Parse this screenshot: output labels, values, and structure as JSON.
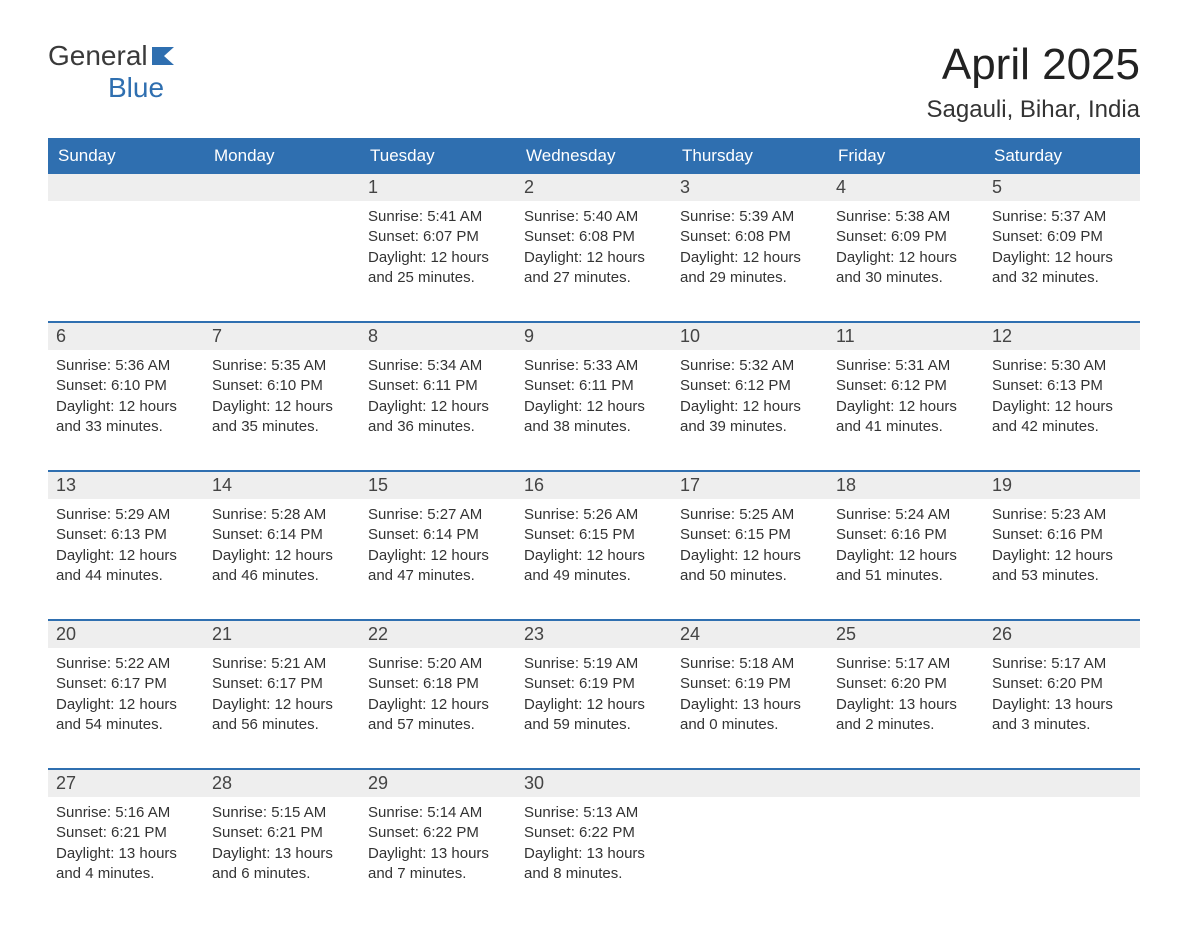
{
  "logo": {
    "text1": "General",
    "text2": "Blue"
  },
  "title": "April 2025",
  "location": "Sagauli, Bihar, India",
  "dow": [
    "Sunday",
    "Monday",
    "Tuesday",
    "Wednesday",
    "Thursday",
    "Friday",
    "Saturday"
  ],
  "colors": {
    "header_bg": "#2f6fb0",
    "header_text": "#ffffff",
    "daynum_bg": "#eeeeee",
    "text": "#333333",
    "rule": "#2f6fb0",
    "page_bg": "#ffffff",
    "logo_gray": "#3a3a3a",
    "logo_blue": "#2f6fb0"
  },
  "fonts": {
    "title_size_pt": 33,
    "location_size_pt": 18,
    "dow_size_pt": 13,
    "daynum_size_pt": 14,
    "body_size_pt": 11
  },
  "weeks": [
    [
      {
        "n": "",
        "lines": []
      },
      {
        "n": "",
        "lines": []
      },
      {
        "n": "1",
        "lines": [
          "Sunrise: 5:41 AM",
          "Sunset: 6:07 PM",
          "Daylight: 12 hours",
          "and 25 minutes."
        ]
      },
      {
        "n": "2",
        "lines": [
          "Sunrise: 5:40 AM",
          "Sunset: 6:08 PM",
          "Daylight: 12 hours",
          "and 27 minutes."
        ]
      },
      {
        "n": "3",
        "lines": [
          "Sunrise: 5:39 AM",
          "Sunset: 6:08 PM",
          "Daylight: 12 hours",
          "and 29 minutes."
        ]
      },
      {
        "n": "4",
        "lines": [
          "Sunrise: 5:38 AM",
          "Sunset: 6:09 PM",
          "Daylight: 12 hours",
          "and 30 minutes."
        ]
      },
      {
        "n": "5",
        "lines": [
          "Sunrise: 5:37 AM",
          "Sunset: 6:09 PM",
          "Daylight: 12 hours",
          "and 32 minutes."
        ]
      }
    ],
    [
      {
        "n": "6",
        "lines": [
          "Sunrise: 5:36 AM",
          "Sunset: 6:10 PM",
          "Daylight: 12 hours",
          "and 33 minutes."
        ]
      },
      {
        "n": "7",
        "lines": [
          "Sunrise: 5:35 AM",
          "Sunset: 6:10 PM",
          "Daylight: 12 hours",
          "and 35 minutes."
        ]
      },
      {
        "n": "8",
        "lines": [
          "Sunrise: 5:34 AM",
          "Sunset: 6:11 PM",
          "Daylight: 12 hours",
          "and 36 minutes."
        ]
      },
      {
        "n": "9",
        "lines": [
          "Sunrise: 5:33 AM",
          "Sunset: 6:11 PM",
          "Daylight: 12 hours",
          "and 38 minutes."
        ]
      },
      {
        "n": "10",
        "lines": [
          "Sunrise: 5:32 AM",
          "Sunset: 6:12 PM",
          "Daylight: 12 hours",
          "and 39 minutes."
        ]
      },
      {
        "n": "11",
        "lines": [
          "Sunrise: 5:31 AM",
          "Sunset: 6:12 PM",
          "Daylight: 12 hours",
          "and 41 minutes."
        ]
      },
      {
        "n": "12",
        "lines": [
          "Sunrise: 5:30 AM",
          "Sunset: 6:13 PM",
          "Daylight: 12 hours",
          "and 42 minutes."
        ]
      }
    ],
    [
      {
        "n": "13",
        "lines": [
          "Sunrise: 5:29 AM",
          "Sunset: 6:13 PM",
          "Daylight: 12 hours",
          "and 44 minutes."
        ]
      },
      {
        "n": "14",
        "lines": [
          "Sunrise: 5:28 AM",
          "Sunset: 6:14 PM",
          "Daylight: 12 hours",
          "and 46 minutes."
        ]
      },
      {
        "n": "15",
        "lines": [
          "Sunrise: 5:27 AM",
          "Sunset: 6:14 PM",
          "Daylight: 12 hours",
          "and 47 minutes."
        ]
      },
      {
        "n": "16",
        "lines": [
          "Sunrise: 5:26 AM",
          "Sunset: 6:15 PM",
          "Daylight: 12 hours",
          "and 49 minutes."
        ]
      },
      {
        "n": "17",
        "lines": [
          "Sunrise: 5:25 AM",
          "Sunset: 6:15 PM",
          "Daylight: 12 hours",
          "and 50 minutes."
        ]
      },
      {
        "n": "18",
        "lines": [
          "Sunrise: 5:24 AM",
          "Sunset: 6:16 PM",
          "Daylight: 12 hours",
          "and 51 minutes."
        ]
      },
      {
        "n": "19",
        "lines": [
          "Sunrise: 5:23 AM",
          "Sunset: 6:16 PM",
          "Daylight: 12 hours",
          "and 53 minutes."
        ]
      }
    ],
    [
      {
        "n": "20",
        "lines": [
          "Sunrise: 5:22 AM",
          "Sunset: 6:17 PM",
          "Daylight: 12 hours",
          "and 54 minutes."
        ]
      },
      {
        "n": "21",
        "lines": [
          "Sunrise: 5:21 AM",
          "Sunset: 6:17 PM",
          "Daylight: 12 hours",
          "and 56 minutes."
        ]
      },
      {
        "n": "22",
        "lines": [
          "Sunrise: 5:20 AM",
          "Sunset: 6:18 PM",
          "Daylight: 12 hours",
          "and 57 minutes."
        ]
      },
      {
        "n": "23",
        "lines": [
          "Sunrise: 5:19 AM",
          "Sunset: 6:19 PM",
          "Daylight: 12 hours",
          "and 59 minutes."
        ]
      },
      {
        "n": "24",
        "lines": [
          "Sunrise: 5:18 AM",
          "Sunset: 6:19 PM",
          "Daylight: 13 hours",
          "and 0 minutes."
        ]
      },
      {
        "n": "25",
        "lines": [
          "Sunrise: 5:17 AM",
          "Sunset: 6:20 PM",
          "Daylight: 13 hours",
          "and 2 minutes."
        ]
      },
      {
        "n": "26",
        "lines": [
          "Sunrise: 5:17 AM",
          "Sunset: 6:20 PM",
          "Daylight: 13 hours",
          "and 3 minutes."
        ]
      }
    ],
    [
      {
        "n": "27",
        "lines": [
          "Sunrise: 5:16 AM",
          "Sunset: 6:21 PM",
          "Daylight: 13 hours",
          "and 4 minutes."
        ]
      },
      {
        "n": "28",
        "lines": [
          "Sunrise: 5:15 AM",
          "Sunset: 6:21 PM",
          "Daylight: 13 hours",
          "and 6 minutes."
        ]
      },
      {
        "n": "29",
        "lines": [
          "Sunrise: 5:14 AM",
          "Sunset: 6:22 PM",
          "Daylight: 13 hours",
          "and 7 minutes."
        ]
      },
      {
        "n": "30",
        "lines": [
          "Sunrise: 5:13 AM",
          "Sunset: 6:22 PM",
          "Daylight: 13 hours",
          "and 8 minutes."
        ]
      },
      {
        "n": "",
        "lines": []
      },
      {
        "n": "",
        "lines": []
      },
      {
        "n": "",
        "lines": []
      }
    ]
  ]
}
